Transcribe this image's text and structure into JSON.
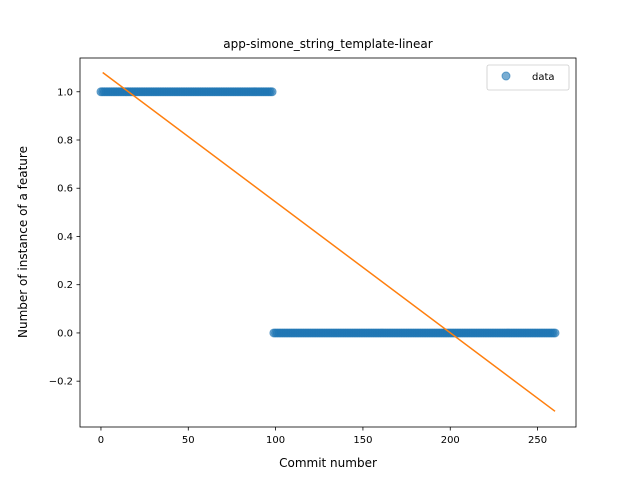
{
  "chart_data": {
    "type": "scatter",
    "title": "app-simone_string_template-linear",
    "xlabel": "Commit number",
    "ylabel": "Number of instance of a feature",
    "xlim": [
      -12,
      272
    ],
    "ylim": [
      -0.39,
      1.14
    ],
    "xticks": [
      0,
      50,
      100,
      150,
      200,
      250
    ],
    "yticks": [
      -0.2,
      0.0,
      0.2,
      0.4,
      0.6,
      0.8,
      1.0
    ],
    "xtick_labels": [
      "0",
      "50",
      "100",
      "150",
      "200",
      "250"
    ],
    "ytick_labels": [
      "−0.2",
      "0.0",
      "0.2",
      "0.4",
      "0.6",
      "0.8",
      "1.0"
    ],
    "legend": {
      "placement": "top-right",
      "entries": [
        "data"
      ]
    },
    "grid": false,
    "series": [
      {
        "name": "data",
        "kind": "points",
        "color": "#1f77b4",
        "segments": [
          {
            "x_start": 0,
            "x_end": 98,
            "y": 1.0
          },
          {
            "x_start": 99,
            "x_end": 260,
            "y": 0.0
          }
        ]
      },
      {
        "kind": "line",
        "color": "#ff7f0e",
        "x": [
          1,
          260
        ],
        "y": [
          1.08,
          -0.325
        ]
      }
    ]
  }
}
